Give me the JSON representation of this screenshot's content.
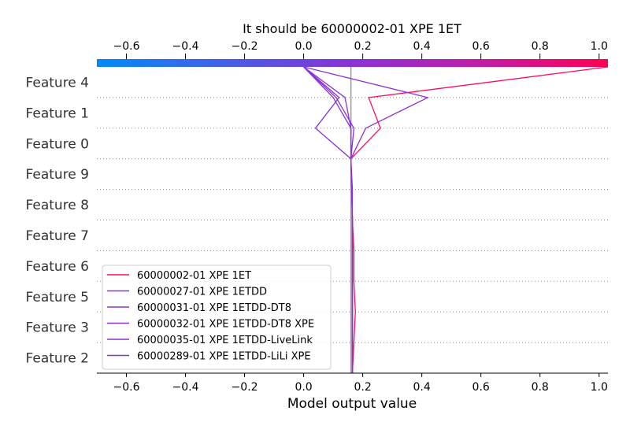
{
  "chart_data": {
    "type": "line",
    "title": "It should be 60000002-01 XPE 1ET",
    "xlabel": "Model output value",
    "xlim": [
      -0.7,
      1.03
    ],
    "x_ticks": [
      "−0.6",
      "−0.4",
      "−0.2",
      "0.0",
      "0.2",
      "0.4",
      "0.6",
      "0.8",
      "1.0"
    ],
    "tick_values": [
      -0.6,
      -0.4,
      -0.2,
      0.0,
      0.2,
      0.4,
      0.6,
      0.8,
      1.0
    ],
    "base_value": 0.16,
    "features": [
      "Feature 4",
      "Feature 1",
      "Feature 0",
      "Feature 9",
      "Feature 8",
      "Feature 7",
      "Feature 6",
      "Feature 5",
      "Feature 3",
      "Feature 2"
    ],
    "colorbar": {
      "low_color": "#008bfb",
      "high_color": "#ff0052",
      "range": [
        -0.7,
        1.03
      ]
    },
    "legend_location": "lower left",
    "series": [
      {
        "name": "60000002-01 XPE 1ET",
        "color": "#ff0b5a",
        "values": [
          1.03,
          0.22,
          0.26,
          0.16,
          0.165,
          0.165,
          0.17,
          0.17,
          0.175,
          0.17,
          0.165
        ]
      },
      {
        "name": "60000027-01 XPE 1ETDD",
        "color": "#8a32d6",
        "values": [
          0.0,
          0.42,
          0.21,
          0.16,
          0.163,
          0.165,
          0.165,
          0.165,
          0.165,
          0.165,
          0.165
        ]
      },
      {
        "name": "60000031-01 XPE 1ETDD-DT8",
        "color": "#8a32d6",
        "values": [
          0.0,
          0.11,
          0.17,
          0.16,
          0.163,
          0.165,
          0.165,
          0.165,
          0.165,
          0.165,
          0.165
        ]
      },
      {
        "name": "60000032-01 XPE 1ETDD-DT8 XPE",
        "color": "#8a32d6",
        "values": [
          0.0,
          0.12,
          0.04,
          0.16,
          0.163,
          0.165,
          0.165,
          0.165,
          0.165,
          0.165,
          0.165
        ]
      },
      {
        "name": "60000035-01 XPE 1ETDD-LiveLink",
        "color": "#8a32d6",
        "values": [
          0.0,
          0.1,
          0.16,
          0.16,
          0.163,
          0.165,
          0.165,
          0.165,
          0.165,
          0.165,
          0.165
        ]
      },
      {
        "name": "60000289-01 XPE 1ETDD-LiLi XPE",
        "color": "#8a32d6",
        "values": [
          0.0,
          0.14,
          0.16,
          0.16,
          0.163,
          0.165,
          0.165,
          0.165,
          0.165,
          0.165,
          0.165
        ]
      }
    ]
  }
}
